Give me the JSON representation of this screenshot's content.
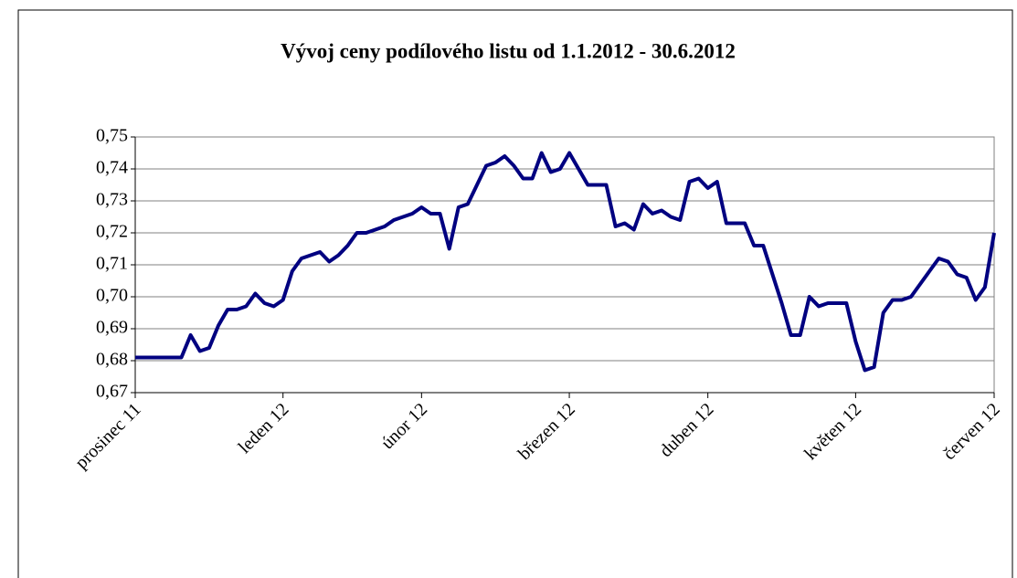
{
  "chart_data": {
    "type": "line",
    "title": "Vývoj ceny podílového listu od 1.1.2012 - 30.6.2012",
    "categories": [
      "prosinec 11",
      null,
      null,
      null,
      null,
      null,
      null,
      null,
      null,
      null,
      null,
      null,
      null,
      null,
      null,
      null,
      "leden 12",
      null,
      null,
      null,
      null,
      null,
      null,
      null,
      null,
      null,
      null,
      null,
      null,
      null,
      null,
      "únor 12",
      null,
      null,
      null,
      null,
      null,
      null,
      null,
      null,
      null,
      null,
      null,
      null,
      null,
      null,
      null,
      "březen 12",
      null,
      null,
      null,
      null,
      null,
      null,
      null,
      null,
      null,
      null,
      null,
      null,
      null,
      null,
      "duben 12",
      null,
      null,
      null,
      null,
      null,
      null,
      null,
      null,
      null,
      null,
      null,
      null,
      null,
      null,
      null,
      "květen 12",
      null,
      null,
      null,
      null,
      null,
      null,
      null,
      null,
      null,
      null,
      null,
      null,
      null,
      null,
      "červen 12"
    ],
    "values": [
      0.681,
      0.681,
      0.681,
      0.681,
      0.681,
      0.681,
      0.688,
      0.683,
      0.684,
      0.691,
      0.696,
      0.696,
      0.697,
      0.701,
      0.698,
      0.697,
      0.699,
      0.708,
      0.712,
      0.713,
      0.714,
      0.711,
      0.713,
      0.716,
      0.72,
      0.72,
      0.721,
      0.722,
      0.724,
      0.725,
      0.726,
      0.728,
      0.726,
      0.726,
      0.715,
      0.728,
      0.729,
      0.735,
      0.741,
      0.742,
      0.744,
      0.741,
      0.737,
      0.737,
      0.745,
      0.739,
      0.74,
      0.745,
      0.74,
      0.735,
      0.735,
      0.735,
      0.722,
      0.723,
      0.721,
      0.729,
      0.726,
      0.727,
      0.725,
      0.724,
      0.736,
      0.737,
      0.734,
      0.736,
      0.723,
      0.723,
      0.723,
      0.716,
      0.716,
      0.707,
      0.698,
      0.688,
      0.688,
      0.7,
      0.697,
      0.698,
      0.698,
      0.698,
      0.686,
      0.677,
      0.678,
      0.695,
      0.699,
      0.699,
      0.7,
      0.704,
      0.708,
      0.712,
      0.711,
      0.707,
      0.706,
      0.699,
      0.703,
      0.72
    ],
    "color": "#000080",
    "ylim": [
      0.67,
      0.75
    ],
    "yticks": [
      {
        "value": 0.67,
        "label": "0,67"
      },
      {
        "value": 0.68,
        "label": "0,68"
      },
      {
        "value": 0.69,
        "label": "0,69"
      },
      {
        "value": 0.7,
        "label": "0,70"
      },
      {
        "value": 0.71,
        "label": "0,71"
      },
      {
        "value": 0.72,
        "label": "0,72"
      },
      {
        "value": 0.73,
        "label": "0,73"
      },
      {
        "value": 0.74,
        "label": "0,74"
      },
      {
        "value": 0.75,
        "label": "0,75"
      }
    ],
    "grid": true
  }
}
